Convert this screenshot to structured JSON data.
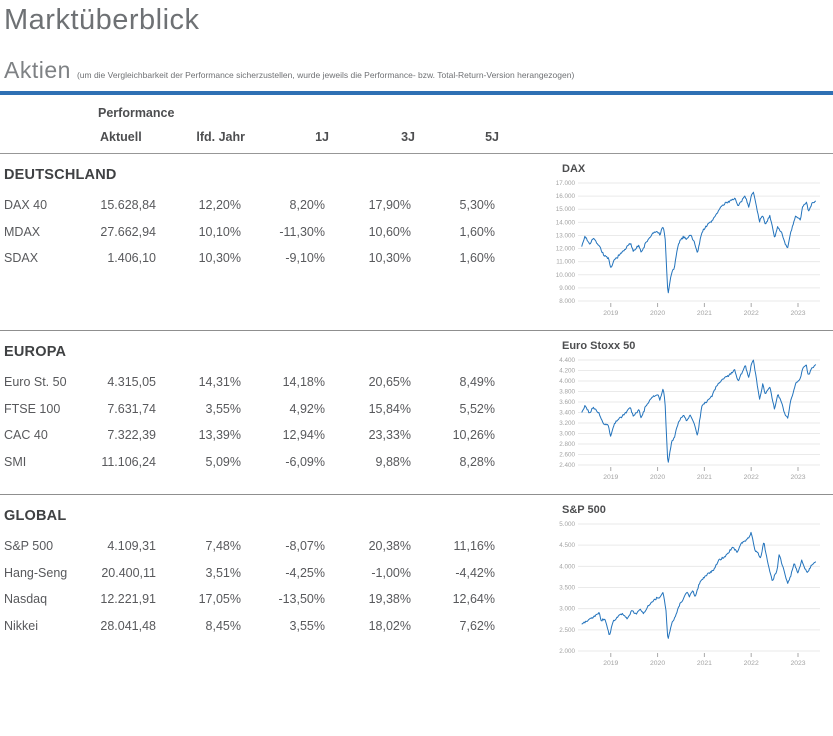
{
  "page": {
    "title": "Marktüberblick",
    "heading": "Aktien",
    "note": "(um die Vergleichbarkeit der Performance sicherzustellen, wurde jeweils die Performance- bzw. Total-Return-Version herangezogen)"
  },
  "table": {
    "group_header": "Performance",
    "columns": [
      "Aktuell",
      "lfd. Jahr",
      "1J",
      "3J",
      "5J"
    ],
    "sections": [
      {
        "title": "DEUTSCHLAND",
        "rows": [
          {
            "name": "DAX 40",
            "values": [
              "15.628,84",
              "12,20%",
              "8,20%",
              "17,90%",
              "5,30%"
            ]
          },
          {
            "name": "MDAX",
            "values": [
              "27.662,94",
              "10,10%",
              "-11,30%",
              "10,60%",
              "1,60%"
            ]
          },
          {
            "name": "SDAX",
            "values": [
              "1.406,10",
              "10,30%",
              "-9,10%",
              "10,30%",
              "1,60%"
            ]
          }
        ]
      },
      {
        "title": "EUROPA",
        "rows": [
          {
            "name": "Euro St. 50",
            "values": [
              "4.315,05",
              "14,31%",
              "14,18%",
              "20,65%",
              "8,49%"
            ]
          },
          {
            "name": "FTSE 100",
            "values": [
              "7.631,74",
              "3,55%",
              "4,92%",
              "15,84%",
              "5,52%"
            ]
          },
          {
            "name": "CAC 40",
            "values": [
              "7.322,39",
              "13,39%",
              "12,94%",
              "23,33%",
              "10,26%"
            ]
          },
          {
            "name": "SMI",
            "values": [
              "11.106,24",
              "5,09%",
              "-6,09%",
              "9,88%",
              "8,28%"
            ]
          }
        ]
      },
      {
        "title": "GLOBAL",
        "rows": [
          {
            "name": "S&P 500",
            "values": [
              "4.109,31",
              "7,48%",
              "-8,07%",
              "20,38%",
              "11,16%"
            ]
          },
          {
            "name": "Hang-Seng",
            "values": [
              "20.400,11",
              "3,51%",
              "-4,25%",
              "-1,00%",
              "-4,42%"
            ]
          },
          {
            "name": "Nasdaq",
            "values": [
              "12.221,91",
              "17,05%",
              "-13,50%",
              "19,38%",
              "12,64%"
            ]
          },
          {
            "name": "Nikkei",
            "values": [
              "28.041,48",
              "8,45%",
              "3,55%",
              "18,02%",
              "7,62%"
            ]
          }
        ]
      }
    ]
  },
  "chart_data": [
    {
      "type": "line",
      "title": "DAX",
      "xlim": [
        2018.3,
        2023.47
      ],
      "ylim": [
        8000,
        17000
      ],
      "y_ticks": [
        8000,
        9000,
        10000,
        11000,
        12000,
        13000,
        14000,
        15000,
        16000,
        17000
      ],
      "y_tick_labels": [
        "8.000",
        "9.000",
        "10.000",
        "11.000",
        "12.000",
        "13.000",
        "14.000",
        "15.000",
        "16.000",
        "17.000"
      ],
      "x_ticks": [
        2019,
        2020,
        2021,
        2022,
        2023
      ],
      "x_tick_labels": [
        "2019",
        "2020",
        "2021",
        "2022",
        "2023"
      ],
      "grid": true,
      "legend": "none",
      "anchors": [
        [
          2018.38,
          12150
        ],
        [
          2018.45,
          12950
        ],
        [
          2018.55,
          12350
        ],
        [
          2018.62,
          12800
        ],
        [
          2018.75,
          12250
        ],
        [
          2018.85,
          11500
        ],
        [
          2018.95,
          11250
        ],
        [
          2019.0,
          10450
        ],
        [
          2019.08,
          11150
        ],
        [
          2019.2,
          11550
        ],
        [
          2019.33,
          12050
        ],
        [
          2019.42,
          12400
        ],
        [
          2019.48,
          11850
        ],
        [
          2019.6,
          12250
        ],
        [
          2019.65,
          11650
        ],
        [
          2019.75,
          12450
        ],
        [
          2019.9,
          13150
        ],
        [
          2020.0,
          13300
        ],
        [
          2020.05,
          13050
        ],
        [
          2020.12,
          13700
        ],
        [
          2020.16,
          12900
        ],
        [
          2020.22,
          8450
        ],
        [
          2020.3,
          10200
        ],
        [
          2020.35,
          10400
        ],
        [
          2020.45,
          12450
        ],
        [
          2020.55,
          12900
        ],
        [
          2020.62,
          12750
        ],
        [
          2020.7,
          13050
        ],
        [
          2020.78,
          12550
        ],
        [
          2020.85,
          11650
        ],
        [
          2020.95,
          13300
        ],
        [
          2021.05,
          13750
        ],
        [
          2021.15,
          14050
        ],
        [
          2021.25,
          14600
        ],
        [
          2021.35,
          15150
        ],
        [
          2021.45,
          15450
        ],
        [
          2021.55,
          15650
        ],
        [
          2021.65,
          15850
        ],
        [
          2021.72,
          15200
        ],
        [
          2021.8,
          15650
        ],
        [
          2021.87,
          16000
        ],
        [
          2021.95,
          15200
        ],
        [
          2022.0,
          16050
        ],
        [
          2022.05,
          16280
        ],
        [
          2022.1,
          15400
        ],
        [
          2022.18,
          14100
        ],
        [
          2022.25,
          14550
        ],
        [
          2022.3,
          13900
        ],
        [
          2022.4,
          14450
        ],
        [
          2022.5,
          12850
        ],
        [
          2022.57,
          13700
        ],
        [
          2022.65,
          13200
        ],
        [
          2022.72,
          12350
        ],
        [
          2022.78,
          12050
        ],
        [
          2022.85,
          13300
        ],
        [
          2022.95,
          14450
        ],
        [
          2023.05,
          14200
        ],
        [
          2023.1,
          15250
        ],
        [
          2023.18,
          15550
        ],
        [
          2023.22,
          14850
        ],
        [
          2023.3,
          15450
        ],
        [
          2023.38,
          15630
        ]
      ]
    },
    {
      "type": "line",
      "title": "Euro Stoxx 50",
      "xlim": [
        2018.3,
        2023.47
      ],
      "ylim": [
        2400,
        4400
      ],
      "y_ticks": [
        2400,
        2600,
        2800,
        3000,
        3200,
        3400,
        3600,
        3800,
        4000,
        4200,
        4400
      ],
      "y_tick_labels": [
        "2.400",
        "2.600",
        "2.800",
        "3.000",
        "3.200",
        "3.400",
        "3.600",
        "3.800",
        "4.000",
        "4.200",
        "4.400"
      ],
      "x_ticks": [
        2019,
        2020,
        2021,
        2022,
        2023
      ],
      "x_tick_labels": [
        "2019",
        "2020",
        "2021",
        "2022",
        "2023"
      ],
      "grid": true,
      "legend": "none",
      "anchors": [
        [
          2018.38,
          3400
        ],
        [
          2018.45,
          3530
        ],
        [
          2018.55,
          3380
        ],
        [
          2018.62,
          3500
        ],
        [
          2018.75,
          3380
        ],
        [
          2018.85,
          3180
        ],
        [
          2018.95,
          3150
        ],
        [
          2019.0,
          2950
        ],
        [
          2019.08,
          3200
        ],
        [
          2019.2,
          3300
        ],
        [
          2019.33,
          3400
        ],
        [
          2019.42,
          3500
        ],
        [
          2019.48,
          3320
        ],
        [
          2019.6,
          3450
        ],
        [
          2019.65,
          3290
        ],
        [
          2019.75,
          3530
        ],
        [
          2019.9,
          3700
        ],
        [
          2020.0,
          3750
        ],
        [
          2020.05,
          3640
        ],
        [
          2020.12,
          3860
        ],
        [
          2020.16,
          3580
        ],
        [
          2020.22,
          2400
        ],
        [
          2020.3,
          2850
        ],
        [
          2020.35,
          2900
        ],
        [
          2020.45,
          3230
        ],
        [
          2020.55,
          3350
        ],
        [
          2020.62,
          3250
        ],
        [
          2020.7,
          3350
        ],
        [
          2020.78,
          3200
        ],
        [
          2020.85,
          2950
        ],
        [
          2020.95,
          3550
        ],
        [
          2021.05,
          3600
        ],
        [
          2021.15,
          3700
        ],
        [
          2021.25,
          3880
        ],
        [
          2021.35,
          4000
        ],
        [
          2021.45,
          4070
        ],
        [
          2021.55,
          4130
        ],
        [
          2021.65,
          4200
        ],
        [
          2021.72,
          4000
        ],
        [
          2021.8,
          4150
        ],
        [
          2021.87,
          4310
        ],
        [
          2021.95,
          4050
        ],
        [
          2022.0,
          4300
        ],
        [
          2022.05,
          4400
        ],
        [
          2022.1,
          4100
        ],
        [
          2022.18,
          3650
        ],
        [
          2022.25,
          3950
        ],
        [
          2022.3,
          3750
        ],
        [
          2022.4,
          3900
        ],
        [
          2022.5,
          3450
        ],
        [
          2022.57,
          3750
        ],
        [
          2022.65,
          3600
        ],
        [
          2022.72,
          3350
        ],
        [
          2022.78,
          3300
        ],
        [
          2022.85,
          3650
        ],
        [
          2022.95,
          3950
        ],
        [
          2023.05,
          4050
        ],
        [
          2023.1,
          4250
        ],
        [
          2023.18,
          4300
        ],
        [
          2023.22,
          4100
        ],
        [
          2023.3,
          4250
        ],
        [
          2023.38,
          4315
        ]
      ]
    },
    {
      "type": "line",
      "title": "S&P 500",
      "xlim": [
        2018.3,
        2023.47
      ],
      "ylim": [
        2000,
        5000
      ],
      "y_ticks": [
        2000,
        2500,
        3000,
        3500,
        4000,
        4500,
        5000
      ],
      "y_tick_labels": [
        "2.000",
        "2.500",
        "3.000",
        "3.500",
        "4.000",
        "4.500",
        "5.000"
      ],
      "x_ticks": [
        2019,
        2020,
        2021,
        2022,
        2023
      ],
      "x_tick_labels": [
        "2019",
        "2020",
        "2021",
        "2022",
        "2023"
      ],
      "grid": true,
      "legend": "none",
      "anchors": [
        [
          2018.38,
          2630
        ],
        [
          2018.5,
          2720
        ],
        [
          2018.62,
          2800
        ],
        [
          2018.7,
          2870
        ],
        [
          2018.75,
          2900
        ],
        [
          2018.8,
          2720
        ],
        [
          2018.88,
          2760
        ],
        [
          2018.97,
          2350
        ],
        [
          2019.05,
          2700
        ],
        [
          2019.15,
          2800
        ],
        [
          2019.25,
          2900
        ],
        [
          2019.35,
          2750
        ],
        [
          2019.45,
          2950
        ],
        [
          2019.55,
          2880
        ],
        [
          2019.62,
          3000
        ],
        [
          2019.7,
          2890
        ],
        [
          2019.8,
          3070
        ],
        [
          2019.95,
          3230
        ],
        [
          2020.05,
          3280
        ],
        [
          2020.12,
          3380
        ],
        [
          2020.18,
          2950
        ],
        [
          2020.22,
          2240
        ],
        [
          2020.3,
          2650
        ],
        [
          2020.4,
          2870
        ],
        [
          2020.45,
          3050
        ],
        [
          2020.55,
          3230
        ],
        [
          2020.62,
          3400
        ],
        [
          2020.68,
          3300
        ],
        [
          2020.75,
          3450
        ],
        [
          2020.8,
          3270
        ],
        [
          2020.9,
          3620
        ],
        [
          2021.0,
          3750
        ],
        [
          2021.1,
          3850
        ],
        [
          2021.2,
          3900
        ],
        [
          2021.3,
          4150
        ],
        [
          2021.4,
          4200
        ],
        [
          2021.5,
          4300
        ],
        [
          2021.6,
          4450
        ],
        [
          2021.7,
          4350
        ],
        [
          2021.8,
          4550
        ],
        [
          2021.88,
          4600
        ],
        [
          2021.95,
          4670
        ],
        [
          2022.0,
          4790
        ],
        [
          2022.08,
          4400
        ],
        [
          2022.15,
          4300
        ],
        [
          2022.2,
          4170
        ],
        [
          2022.27,
          4580
        ],
        [
          2022.35,
          4100
        ],
        [
          2022.45,
          3650
        ],
        [
          2022.55,
          3900
        ],
        [
          2022.6,
          4280
        ],
        [
          2022.7,
          3900
        ],
        [
          2022.78,
          3580
        ],
        [
          2022.85,
          3790
        ],
        [
          2022.92,
          4070
        ],
        [
          2023.0,
          3830
        ],
        [
          2023.08,
          4150
        ],
        [
          2023.15,
          3950
        ],
        [
          2023.2,
          3850
        ],
        [
          2023.3,
          4050
        ],
        [
          2023.38,
          4109
        ]
      ]
    }
  ],
  "colors": {
    "accent_blue": "#2e70b4",
    "line_blue": "#2373bc",
    "grid_gray": "#eaeaea",
    "tick_text": "#a3a3a3",
    "separator": "#8f8f8f"
  }
}
